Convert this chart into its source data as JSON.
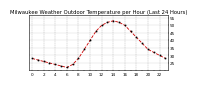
{
  "title": "Milwaukee Weather Outdoor Temperature per Hour (Last 24 Hours)",
  "hours": [
    0,
    1,
    2,
    3,
    4,
    5,
    6,
    7,
    8,
    9,
    10,
    11,
    12,
    13,
    14,
    15,
    16,
    17,
    18,
    19,
    20,
    21,
    22,
    23
  ],
  "temps": [
    28,
    27,
    26,
    25,
    24,
    23,
    22,
    24,
    28,
    34,
    40,
    46,
    50,
    52,
    53,
    52,
    50,
    46,
    42,
    38,
    34,
    32,
    30,
    28
  ],
  "line_color": "#cc0000",
  "marker_color": "#000000",
  "bg_color": "#ffffff",
  "grid_color": "#888888",
  "ylim": [
    20,
    57
  ],
  "yticks": [
    25,
    30,
    35,
    40,
    45,
    50,
    55
  ],
  "tick_label_fontsize": 3.0,
  "title_fontsize": 3.8
}
